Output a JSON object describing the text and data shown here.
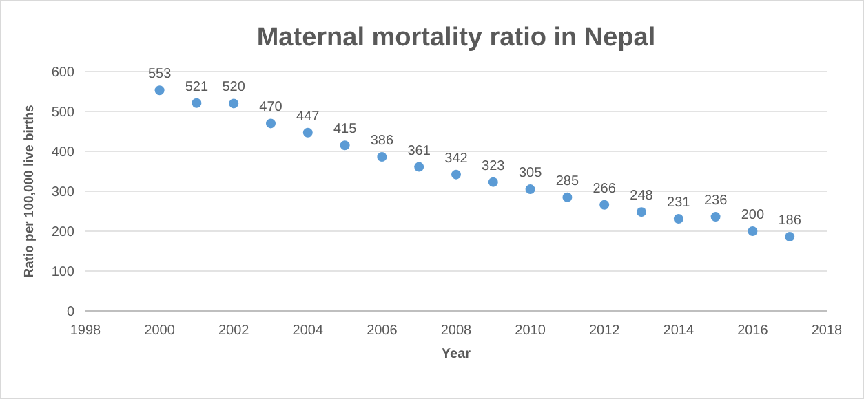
{
  "chart_data": {
    "type": "scatter",
    "title": "Maternal mortality ratio in Nepal",
    "xlabel": "Year",
    "ylabel": "Ratio per 100,000 live births",
    "x": [
      2000,
      2001,
      2002,
      2003,
      2004,
      2005,
      2006,
      2007,
      2008,
      2009,
      2010,
      2011,
      2012,
      2013,
      2014,
      2015,
      2016,
      2017
    ],
    "values": [
      553,
      521,
      520,
      470,
      447,
      415,
      386,
      361,
      342,
      323,
      305,
      285,
      266,
      248,
      231,
      236,
      200,
      186
    ],
    "color": "#5b9bd5",
    "marker": "circle",
    "data_labels": true,
    "xlim": [
      1998,
      2018
    ],
    "xticks": [
      1998,
      2000,
      2002,
      2004,
      2006,
      2008,
      2010,
      2012,
      2014,
      2016,
      2018
    ],
    "ylim": [
      0,
      600
    ],
    "yticks": [
      0,
      100,
      200,
      300,
      400,
      500,
      600
    ],
    "grid": "y"
  }
}
